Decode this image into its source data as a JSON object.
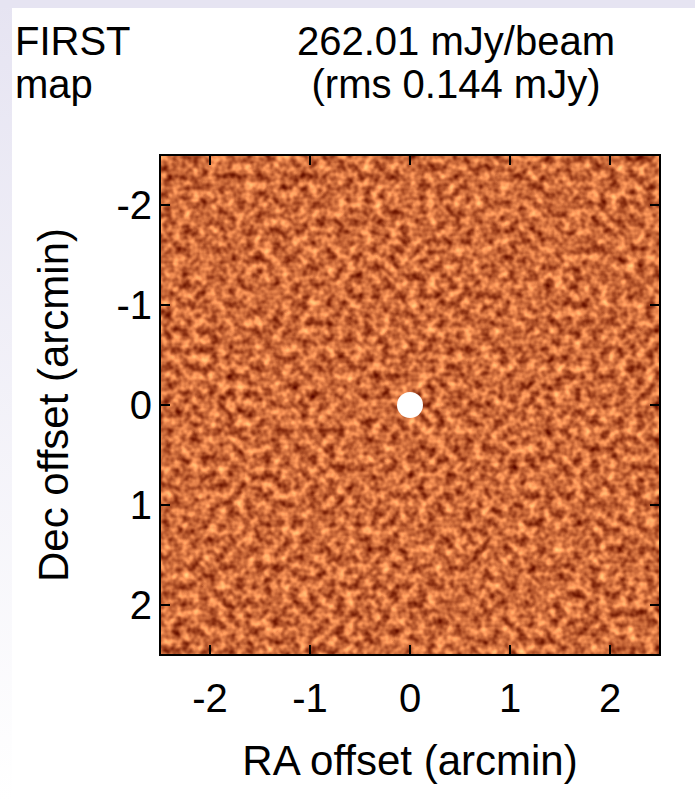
{
  "chart_data": {
    "type": "image",
    "title": [
      "FIRST",
      "map"
    ],
    "subtitle": [
      "262.01 mJy/beam",
      "(rms 0.144 mJy)"
    ],
    "x_label": "RA offset (arcmin)",
    "y_label": "Dec offset (arcmin)",
    "x": [
      0
    ],
    "y": [
      0
    ],
    "color": "#ffffff",
    "xlim": [
      -2.5,
      2.5
    ],
    "ylim": [
      2.5,
      -2.5
    ],
    "xticks": [
      -2,
      -1,
      0,
      1,
      2
    ],
    "yticks": [
      -2,
      -1,
      0,
      1,
      2
    ]
  }
}
